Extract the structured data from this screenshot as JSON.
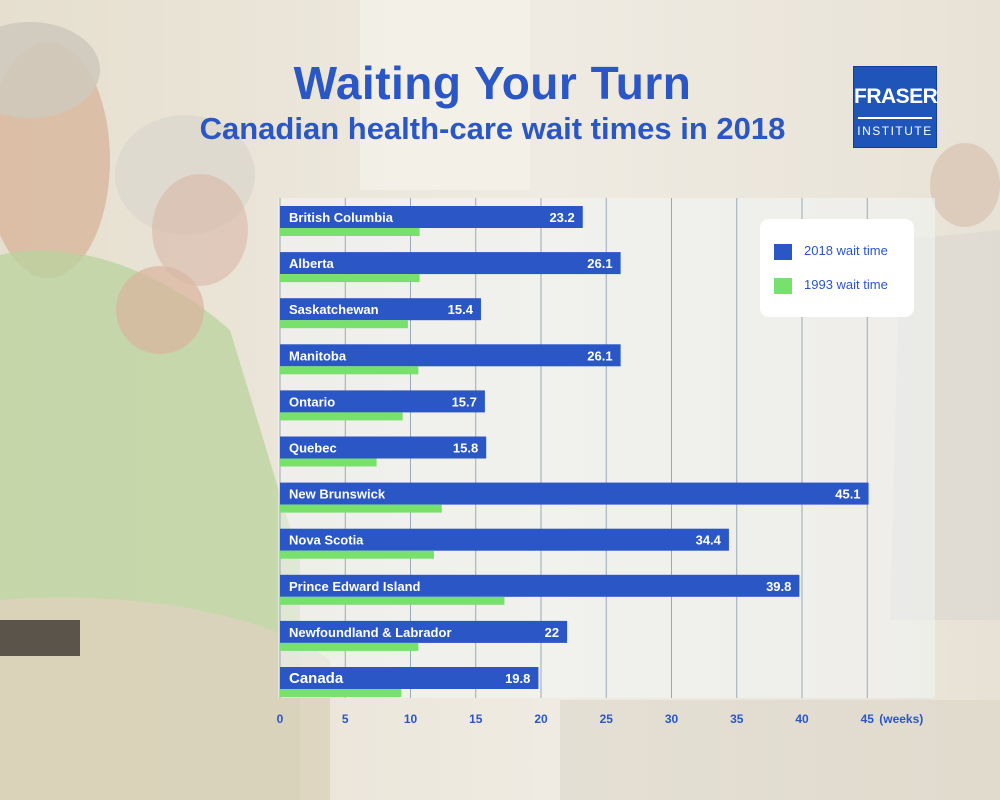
{
  "header": {
    "title": "Waiting Your Turn",
    "subtitle": "Canadian health-care wait times in 2018"
  },
  "logo": {
    "top_text": "FRASER",
    "bottom_text": "INSTITUTE",
    "color": "#1f55b8"
  },
  "colors": {
    "series_2018": "#2a56c6",
    "series_1993": "#78e06d",
    "label_text": "#1f2f6b",
    "axis_text": "#2a56c6"
  },
  "legend": {
    "items": [
      {
        "label": "2018 wait time",
        "color": "#2a56c6"
      },
      {
        "label": "1993 wait time",
        "color": "#78e06d"
      }
    ]
  },
  "chart_data": {
    "type": "bar",
    "orientation": "horizontal",
    "title": "Waiting Your Turn",
    "subtitle": "Canadian health-care wait times in 2018",
    "categories": [
      "British Columbia",
      "Alberta",
      "Saskatchewan",
      "Manitoba",
      "Ontario",
      "Quebec",
      "New Brunswick",
      "Nova Scotia",
      "Prince Edward Island",
      "Newfoundland & Labrador",
      "Canada"
    ],
    "series": [
      {
        "name": "2018 wait time",
        "values": [
          23.2,
          26.1,
          15.4,
          26.1,
          15.7,
          15.8,
          45.1,
          34.4,
          39.8,
          22,
          19.8
        ],
        "data_labels": [
          "23.2",
          "26.1",
          "15.4",
          "26.1",
          "15.7",
          "15.8",
          "45.1",
          "34.4",
          "39.8",
          "22",
          "19.8"
        ]
      },
      {
        "name": "1993 wait time",
        "values": [
          10.7,
          10.7,
          9.8,
          10.6,
          9.4,
          7.4,
          12.4,
          11.8,
          17.2,
          10.6,
          9.3
        ]
      }
    ],
    "xlim": [
      0,
      50
    ],
    "xticks": [
      "0",
      "5",
      "10",
      "15",
      "20",
      "25",
      "30",
      "35",
      "40",
      "45"
    ],
    "xunit": "(weeks)",
    "grid": true,
    "legend_position": "top-right"
  }
}
